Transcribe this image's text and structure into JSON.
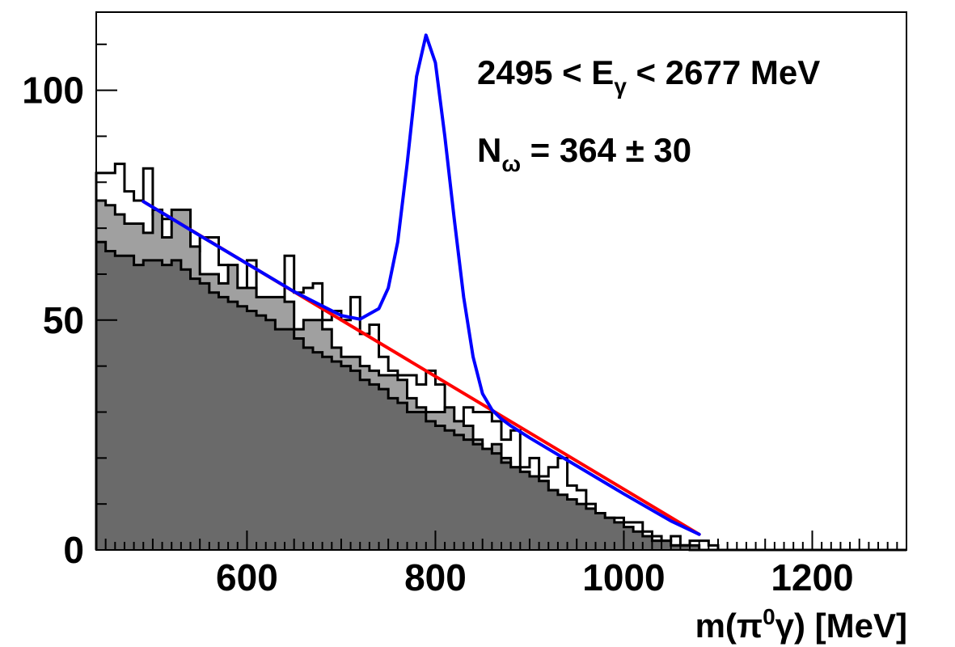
{
  "chart_data": {
    "type": "histogram",
    "xlabel": "m(π⁰γ) [MeV]",
    "xlabel_parts": {
      "pre": "m(π",
      "sup": "0",
      "post": "γ) [MeV]"
    },
    "xlim": [
      440,
      1300
    ],
    "ylim": [
      0,
      117
    ],
    "x_ticks": [
      "600",
      "800",
      "1000",
      "1200"
    ],
    "x_tick_values": [
      600,
      800,
      1000,
      1200
    ],
    "y_ticks": [
      "0",
      "50",
      "100"
    ],
    "y_tick_values": [
      0,
      50,
      100
    ],
    "annotation_energy": {
      "pre": "2495 < E",
      "sub": "γ",
      "post": " < 2677 MeV"
    },
    "annotation_yield": {
      "pre": "N",
      "sub": "ω",
      "post": " = 364 ± 30"
    },
    "bin_width": 10,
    "bin_low_edge": 440,
    "series": [
      {
        "name": "",
        "style": "outline",
        "fill": "none",
        "stroke": "#000000",
        "values": [
          82,
          82,
          84,
          78,
          76,
          83,
          73,
          72,
          72,
          67,
          65,
          68,
          68,
          62,
          57,
          57,
          63,
          53,
          50,
          52,
          64,
          56,
          57,
          58,
          50,
          52,
          50,
          55,
          47,
          49,
          42,
          39,
          38,
          38,
          36,
          39,
          36,
          28,
          28,
          31,
          30,
          30,
          28,
          24,
          26,
          18,
          20,
          16,
          18,
          20,
          14,
          13,
          10,
          8,
          7,
          7,
          6,
          6,
          4,
          3,
          2,
          3,
          1,
          2,
          2,
          1,
          0,
          0,
          0,
          0,
          0,
          0,
          0,
          0,
          0,
          0,
          0,
          0,
          0,
          0,
          0,
          0,
          0,
          0,
          0,
          0
        ]
      },
      {
        "name": "",
        "style": "filled",
        "fill": "#a0a0a0",
        "stroke": "#000000",
        "values": [
          76,
          75,
          73,
          71,
          71,
          69,
          74,
          68,
          74,
          74,
          66,
          60,
          60,
          58,
          62,
          57,
          57,
          55,
          55,
          55,
          54,
          48,
          50,
          50,
          48,
          44,
          42,
          42,
          40,
          39,
          38,
          38,
          37,
          33,
          31,
          30,
          30,
          31,
          28,
          27,
          24,
          22,
          23,
          20,
          18,
          17,
          16,
          15,
          13,
          11,
          10,
          9,
          8,
          6,
          5,
          5,
          4,
          3,
          2,
          2,
          1,
          1,
          1,
          0,
          0,
          0,
          0,
          0,
          0,
          0,
          0,
          0,
          0,
          0,
          0,
          0,
          0,
          0,
          0,
          0,
          0,
          0,
          0,
          0,
          0,
          0
        ]
      },
      {
        "name": "",
        "style": "filled",
        "fill": "#6a6a6a",
        "stroke": "#000000",
        "values": [
          67,
          65,
          64,
          64,
          62,
          63,
          63,
          62,
          63,
          61,
          59,
          58,
          56,
          55,
          54,
          53,
          52,
          51,
          50,
          48,
          48,
          46,
          44,
          43,
          42,
          41,
          40,
          39,
          37,
          36,
          35,
          33,
          32,
          30,
          30,
          28,
          27,
          26,
          25,
          24,
          23,
          22,
          21,
          19,
          18,
          17,
          16,
          15,
          13,
          12,
          11,
          10,
          9,
          8,
          7,
          6,
          5,
          4,
          3,
          2,
          2,
          1,
          1,
          1,
          0,
          0,
          0,
          0,
          0,
          0,
          0,
          0,
          0,
          0,
          0,
          0,
          0,
          0,
          0,
          0,
          0,
          0,
          0,
          0,
          0,
          0
        ]
      }
    ],
    "background_fit": {
      "name": "",
      "color": "#ff0000",
      "x": [
        490,
        1080
      ],
      "y": [
        75.8,
        3.4
      ]
    },
    "total_fit": {
      "name": "",
      "color": "#0000ff",
      "x": [
        490,
        550,
        600,
        650,
        700,
        720,
        740,
        750,
        760,
        770,
        780,
        790,
        800,
        810,
        820,
        830,
        840,
        850,
        860,
        870,
        880,
        900,
        950,
        1000,
        1050,
        1080
      ],
      "y": [
        75.8,
        68.4,
        62.3,
        56.2,
        51.0,
        50.2,
        52.5,
        57.0,
        67.0,
        84.0,
        103.0,
        112.0,
        106.0,
        90.0,
        72.0,
        55.0,
        42.0,
        34.0,
        30.5,
        28.5,
        27.0,
        24.4,
        18.3,
        12.2,
        6.3,
        3.4
      ]
    }
  }
}
